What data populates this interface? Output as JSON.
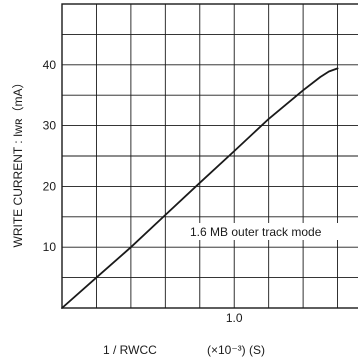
{
  "chart_data": {
    "type": "line",
    "title": "",
    "xlabel": "1 / RWCC",
    "xlabel_unit": "(×10⁻³) (S)",
    "ylabel": "WRITE CURRENT : Iwʀ（mA）",
    "x_ticks": [
      {
        "value": 1.0,
        "label": "1.0"
      }
    ],
    "y_ticks": [
      {
        "value": 10,
        "label": "10"
      },
      {
        "value": 20,
        "label": "20"
      },
      {
        "value": 30,
        "label": "30"
      },
      {
        "value": 40,
        "label": "40"
      }
    ],
    "xlim": [
      0,
      1.8
    ],
    "ylim": [
      0,
      50
    ],
    "grid": true,
    "grid_x_step": 0.2,
    "grid_y_step": 5,
    "annotation": "1.6 MB outer track mode",
    "series": [
      {
        "x": [
          0.0,
          0.2,
          0.4,
          0.6,
          0.8,
          1.0,
          1.2,
          1.4,
          1.5,
          1.55,
          1.6
        ],
        "y": [
          0.0,
          5.0,
          10.0,
          15.3,
          20.6,
          25.8,
          31.1,
          35.8,
          38.0,
          38.9,
          39.4
        ]
      }
    ],
    "colors": {
      "line": "#1a1a1a",
      "grid": "#1a1a1a",
      "background": "#ffffff"
    }
  }
}
